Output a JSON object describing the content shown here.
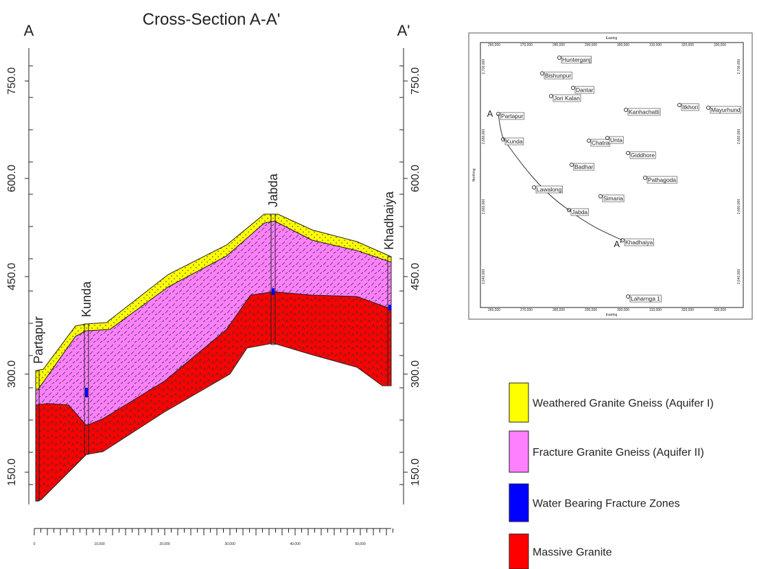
{
  "section": {
    "title": "Cross-Section A-A'",
    "end_left": "A",
    "end_right": "A'",
    "left_axis_ticks": [
      "750.0",
      "600.0",
      "450.0",
      "300.0",
      "150.0"
    ],
    "right_axis_ticks": [
      "750.0",
      "600.0",
      "450.0",
      "300.0",
      "150.0"
    ],
    "bottom_axis_ticks": [
      "0",
      "10,000",
      "20,000",
      "30,000",
      "40,000",
      "50,000"
    ],
    "wells": [
      "Partapur",
      "Kunda",
      "Jabda",
      "Khadhaiya"
    ]
  },
  "map": {
    "top_label": "Easting",
    "bottom_label": "Easting",
    "side_label": "Northing",
    "x_ticks": [
      "260,000",
      "270,000",
      "280,000",
      "290,000",
      "300,000",
      "310,000",
      "320,000",
      "330,000"
    ],
    "y_ticks": [
      "2,700,000",
      "2,680,000",
      "2,660,000",
      "2,640,000"
    ],
    "end_left": "A",
    "end_right": "A'",
    "places": [
      "Hunterganj",
      "Bishunpur",
      "Dantar",
      "Jori Kalan",
      "Partapur",
      "Kanhachatti",
      "Itkhori",
      "Mayurhund",
      "Chatra",
      "Unta",
      "Kunda",
      "Giddhore",
      "Badhar",
      "Pathagoda",
      "Lawalong",
      "Simaria",
      "Jabda",
      "Khadhaiya",
      "Laharnga 1"
    ]
  },
  "legend": [
    "Weathered Granite Gneiss (Aquifer I)",
    "Fracture Granite Gneiss (Aquifer II)",
    "Water Bearing Fracture Zones",
    "Massive Granite"
  ]
}
